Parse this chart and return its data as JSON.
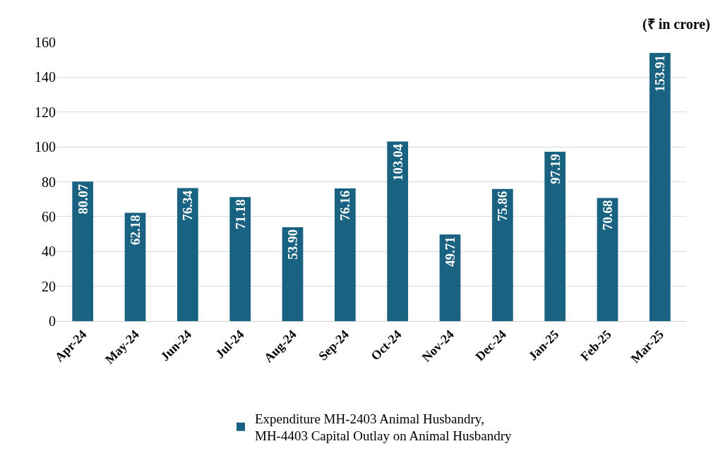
{
  "chart_data": {
    "type": "bar",
    "annotations": [
      "(₹ in crore)"
    ],
    "categories": [
      "Apr-24",
      "May-24",
      "Jun-24",
      "Jul-24",
      "Aug-24",
      "Sep-24",
      "Oct-24",
      "Nov-24",
      "Dec-24",
      "Jan-25",
      "Feb-25",
      "Mar-25"
    ],
    "series": [
      {
        "name": "Expenditure MH-2403 Animal Husbandry,\nMH-4403 Capital Outlay on Animal Husbandry",
        "color": "#1a6282",
        "values": [
          80.07,
          62.18,
          76.34,
          71.18,
          53.9,
          76.16,
          103.04,
          49.71,
          75.86,
          97.19,
          70.68,
          153.91
        ],
        "value_labels": [
          "80.07",
          "62.18",
          "76.34",
          "71.18",
          "53.90",
          "76.16",
          "103.04",
          "49.71",
          "75.86",
          "97.19",
          "70.68",
          "153.91"
        ]
      }
    ],
    "ylim": [
      0,
      160
    ],
    "yticks": [
      0,
      20,
      40,
      60,
      80,
      100,
      120,
      140,
      160
    ],
    "grid": "y",
    "legend": "bottom"
  }
}
